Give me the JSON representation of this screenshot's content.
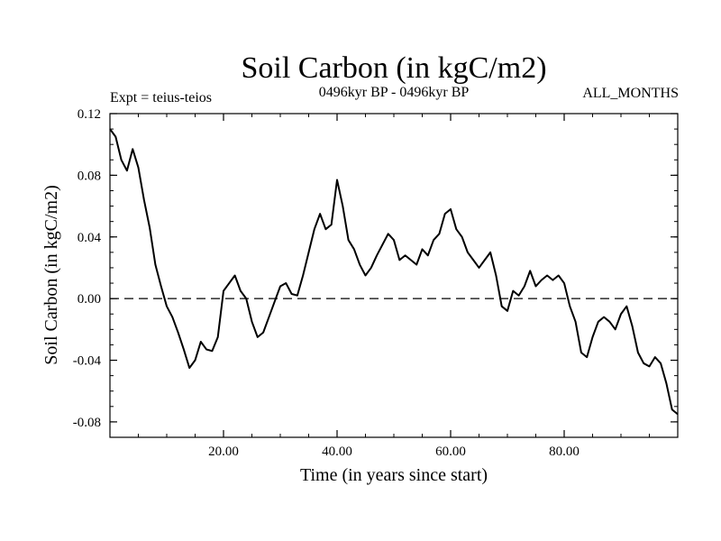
{
  "chart_data": {
    "type": "line",
    "title": "Soil Carbon (in kgC/m2)",
    "subtitle": "0496kyr BP - 0496kyr BP",
    "left_label": "Expt = teius-teios",
    "right_label": "ALL_MONTHS",
    "xlabel": "Time (in years since start)",
    "ylabel": "Soil Carbon (in kgC/m2)",
    "xlim": [
      0,
      100
    ],
    "ylim": [
      -0.09,
      0.12
    ],
    "x_ticks": [
      20,
      40,
      60,
      80
    ],
    "x_tick_labels": [
      "20.00",
      "40.00",
      "60.00",
      "80.00"
    ],
    "y_ticks": [
      -0.08,
      -0.04,
      0.0,
      0.04,
      0.08,
      0.12
    ],
    "y_tick_labels": [
      "-0.08",
      "-0.04",
      "0.00",
      "0.04",
      "0.08",
      "0.12"
    ],
    "reference_line": 0.0,
    "series": [
      {
        "name": "Soil Carbon",
        "x": [
          0,
          1,
          2,
          3,
          4,
          5,
          6,
          7,
          8,
          9,
          10,
          11,
          12,
          13,
          14,
          15,
          16,
          17,
          18,
          19,
          20,
          21,
          22,
          23,
          24,
          25,
          26,
          27,
          28,
          29,
          30,
          31,
          32,
          33,
          34,
          35,
          36,
          37,
          38,
          39,
          40,
          41,
          42,
          43,
          44,
          45,
          46,
          47,
          48,
          49,
          50,
          51,
          52,
          53,
          54,
          55,
          56,
          57,
          58,
          59,
          60,
          61,
          62,
          63,
          64,
          65,
          66,
          67,
          68,
          69,
          70,
          71,
          72,
          73,
          74,
          75,
          76,
          77,
          78,
          79,
          80,
          81,
          82,
          83,
          84,
          85,
          86,
          87,
          88,
          89,
          90,
          91,
          92,
          93,
          94,
          95,
          96,
          97,
          98,
          99,
          100
        ],
        "values": [
          0.11,
          0.105,
          0.09,
          0.083,
          0.097,
          0.085,
          0.064,
          0.046,
          0.022,
          0.008,
          -0.005,
          -0.012,
          -0.022,
          -0.033,
          -0.045,
          -0.04,
          -0.028,
          -0.033,
          -0.034,
          -0.025,
          0.005,
          0.01,
          0.015,
          0.005,
          0.0,
          -0.015,
          -0.025,
          -0.022,
          -0.012,
          -0.002,
          0.008,
          0.01,
          0.003,
          0.002,
          0.015,
          0.03,
          0.045,
          0.055,
          0.045,
          0.048,
          0.077,
          0.06,
          0.038,
          0.032,
          0.022,
          0.015,
          0.02,
          0.028,
          0.035,
          0.042,
          0.038,
          0.025,
          0.028,
          0.025,
          0.022,
          0.032,
          0.028,
          0.038,
          0.042,
          0.055,
          0.058,
          0.045,
          0.04,
          0.03,
          0.025,
          0.02,
          0.025,
          0.03,
          0.015,
          -0.005,
          -0.008,
          0.005,
          0.002,
          0.008,
          0.018,
          0.008,
          0.012,
          0.015,
          0.012,
          0.015,
          0.01,
          -0.005,
          -0.015,
          -0.035,
          -0.038,
          -0.025,
          -0.015,
          -0.012,
          -0.015,
          -0.02,
          -0.01,
          -0.005,
          -0.018,
          -0.035,
          -0.042,
          -0.044,
          -0.038,
          -0.042,
          -0.055,
          -0.072,
          -0.075
        ]
      }
    ]
  }
}
